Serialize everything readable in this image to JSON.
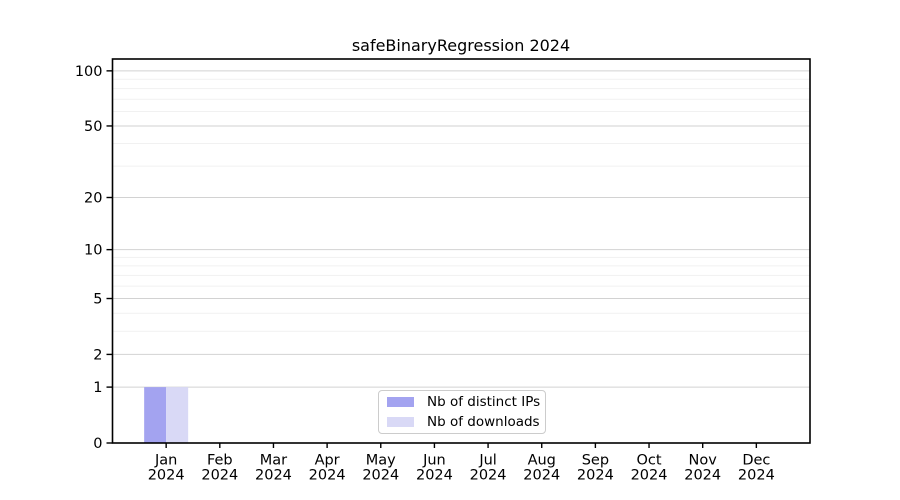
{
  "chart_data": {
    "type": "bar",
    "title": "safeBinaryRegression 2024",
    "categories_months": [
      "Jan",
      "Feb",
      "Mar",
      "Apr",
      "May",
      "Jun",
      "Jul",
      "Aug",
      "Sep",
      "Oct",
      "Nov",
      "Dec"
    ],
    "categories_year": "2024",
    "series": [
      {
        "name": "Nb of distinct IPs",
        "color": "#a3a3f0",
        "values": [
          1,
          0,
          0,
          0,
          0,
          0,
          0,
          0,
          0,
          0,
          0,
          0
        ]
      },
      {
        "name": "Nb of downloads",
        "color": "#d9d9f6",
        "values": [
          1,
          0,
          0,
          0,
          0,
          0,
          0,
          0,
          0,
          0,
          0,
          0
        ]
      }
    ],
    "yscale": "log1p",
    "ylim": [
      0,
      116
    ],
    "yticks": [
      0,
      1,
      2,
      5,
      10,
      20,
      50,
      100
    ],
    "ytick_labels": [
      "0",
      "1",
      "2",
      "5",
      "10",
      "20",
      "50",
      "100"
    ],
    "y_minor_ticks": [
      3,
      4,
      6,
      7,
      8,
      9,
      30,
      40,
      60,
      70,
      80,
      90
    ],
    "grid": {
      "major_color": "#d2d2d2",
      "minor_color": "#f1f1f1"
    },
    "axis_color": "#000000",
    "background_color": "#ffffff",
    "legend": {
      "position": "lower center",
      "border_color": "#cccccc"
    }
  }
}
